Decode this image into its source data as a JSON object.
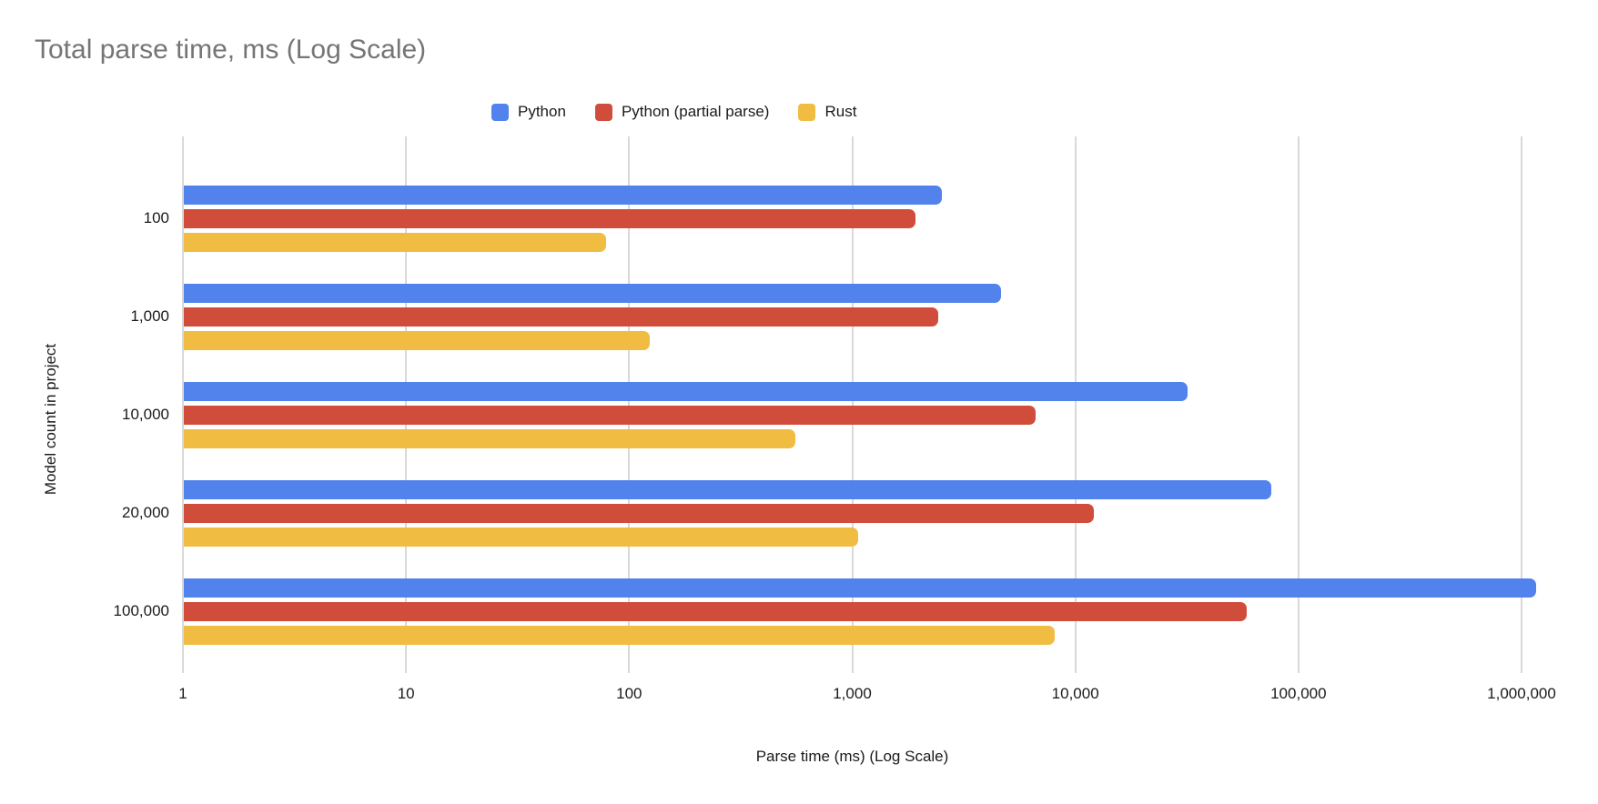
{
  "chart_data": {
    "type": "bar",
    "orientation": "horizontal",
    "x_scale": "log",
    "title": "Total parse time, ms (Log Scale)",
    "xlabel": "Parse time (ms) (Log Scale)",
    "ylabel": "Model count in project",
    "categories": [
      "100",
      "1,000",
      "10,000",
      "20,000",
      "100,000"
    ],
    "x_ticks": [
      "1",
      "10",
      "100",
      "1,000",
      "10,000",
      "100,000",
      "1,000,000"
    ],
    "xlim": [
      1,
      1000000
    ],
    "grid": true,
    "legend_position": "top",
    "series": [
      {
        "name": "Python",
        "color": "#5282EC",
        "values": [
          2500,
          4600,
          31500,
          75000,
          1150000
        ]
      },
      {
        "name": "Python (partial parse)",
        "color": "#D14D3B",
        "values": [
          1900,
          2400,
          6600,
          12000,
          58000
        ]
      },
      {
        "name": "Rust",
        "color": "#F0BC42",
        "values": [
          78,
          122,
          550,
          1050,
          8000
        ]
      }
    ],
    "colors": {
      "title_text": "#757575",
      "axis_text": "#1a1a1a",
      "gridline": "#d9d9d9",
      "background": "#ffffff"
    }
  }
}
